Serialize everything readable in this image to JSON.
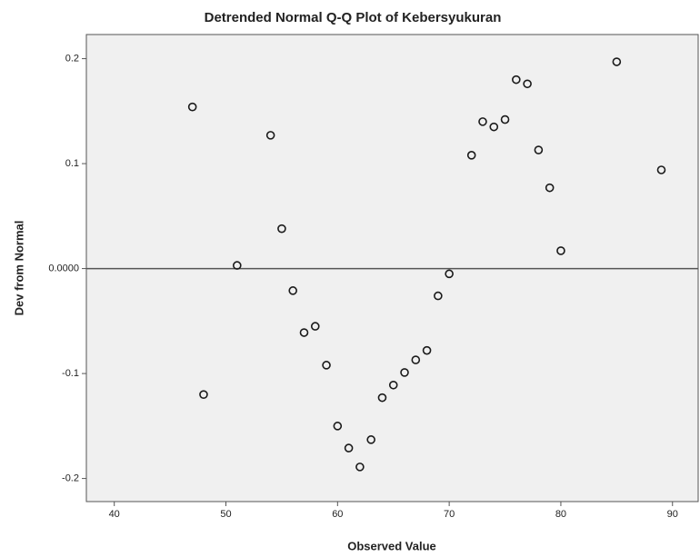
{
  "chart_data": {
    "type": "scatter",
    "title": "Detrended Normal Q-Q Plot of Kebersyukuran",
    "x_label": "Observed Value",
    "y_label": "Dev from Normal",
    "color": "#1a1a1a",
    "x": [
      47,
      48,
      51,
      54,
      55,
      56,
      57,
      58,
      59,
      60,
      61,
      62,
      63,
      64,
      65,
      66,
      67,
      68,
      69,
      70,
      72,
      73,
      74,
      75,
      76,
      77,
      78,
      79,
      80,
      85,
      89
    ],
    "values": [
      0.154,
      -0.12,
      0.003,
      0.127,
      0.038,
      -0.021,
      -0.061,
      -0.055,
      -0.092,
      -0.15,
      -0.171,
      -0.189,
      -0.163,
      -0.123,
      -0.111,
      -0.099,
      -0.087,
      -0.078,
      -0.026,
      -0.005,
      0.108,
      0.14,
      0.135,
      0.142,
      0.18,
      0.176,
      0.113,
      0.077,
      0.017,
      0.197,
      0.094
    ],
    "xlim": [
      37.5,
      92.3
    ],
    "ylim": [
      -0.222,
      0.223
    ],
    "xticks": [
      40,
      50,
      60,
      70,
      80,
      90
    ],
    "yticks": [
      0.2,
      0.1,
      {
        "value": 0,
        "label": "0.0000"
      },
      -0.1,
      -0.2
    ]
  }
}
